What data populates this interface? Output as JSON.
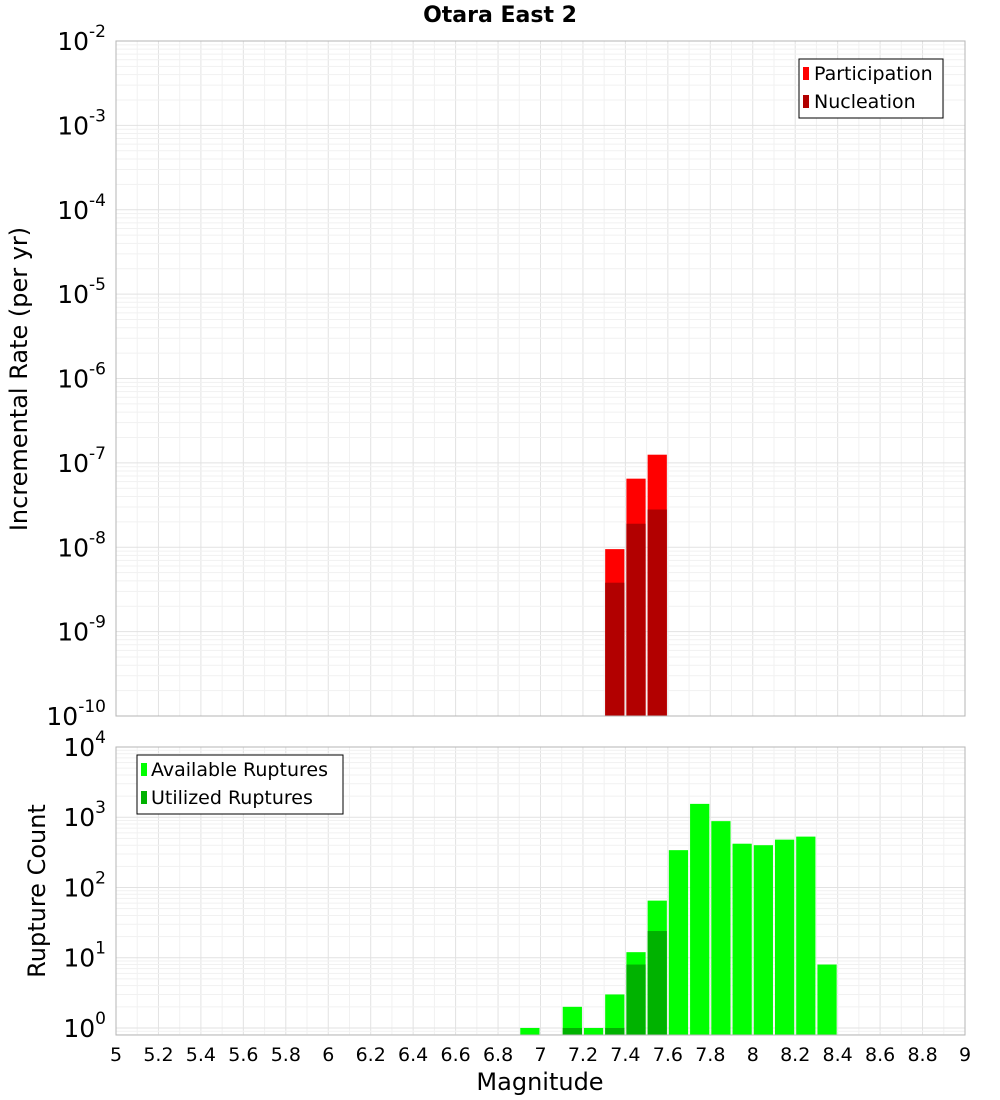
{
  "title": "Otara East 2",
  "colors": {
    "participation": "#ff0000",
    "nucleation": "#b20000",
    "available": "#00ff00",
    "utilized": "#00b200"
  },
  "chart_data": [
    {
      "type": "bar",
      "scale": "log",
      "ylabel": "Incremental Rate (per yr)",
      "ylim_exp": [
        -10,
        -2
      ],
      "y_ticks": [
        {
          "base": "10",
          "exp": "-2"
        },
        {
          "base": "10",
          "exp": "-3"
        },
        {
          "base": "10",
          "exp": "-4"
        },
        {
          "base": "10",
          "exp": "-5"
        },
        {
          "base": "10",
          "exp": "-6"
        },
        {
          "base": "10",
          "exp": "-7"
        },
        {
          "base": "10",
          "exp": "-8"
        },
        {
          "base": "10",
          "exp": "-9"
        },
        {
          "base": "10",
          "exp": "-10"
        }
      ],
      "xlim": [
        5,
        9
      ],
      "bin_width": 0.1,
      "legend": {
        "position": "top-right",
        "entries": [
          "Participation",
          "Nucleation"
        ]
      },
      "series": [
        {
          "name": "Participation",
          "color_key": "participation",
          "points": [
            {
              "x": 7.35,
              "y": 9.5e-09
            },
            {
              "x": 7.45,
              "y": 6.5e-08
            },
            {
              "x": 7.55,
              "y": 1.25e-07
            }
          ]
        },
        {
          "name": "Nucleation",
          "color_key": "nucleation",
          "points": [
            {
              "x": 7.35,
              "y": 3.8e-09
            },
            {
              "x": 7.45,
              "y": 1.9e-08
            },
            {
              "x": 7.55,
              "y": 2.8e-08
            }
          ]
        }
      ]
    },
    {
      "type": "bar",
      "scale": "log",
      "ylabel": "Rupture Count",
      "xlabel": "Magnitude",
      "ylim_exp": [
        -0.1,
        4
      ],
      "y_ticks": [
        {
          "base": "10",
          "exp": "4"
        },
        {
          "base": "10",
          "exp": "3"
        },
        {
          "base": "10",
          "exp": "2"
        },
        {
          "base": "10",
          "exp": "1"
        },
        {
          "base": "10",
          "exp": "0"
        }
      ],
      "xlim": [
        5,
        9
      ],
      "bin_width": 0.1,
      "x_tick_labels": [
        "5",
        "5.2",
        "5.4",
        "5.6",
        "5.8",
        "6",
        "6.2",
        "6.4",
        "6.6",
        "6.8",
        "7",
        "7.2",
        "7.4",
        "7.6",
        "7.8",
        "8",
        "8.2",
        "8.4",
        "8.6",
        "8.8",
        "9"
      ],
      "legend": {
        "position": "top-left",
        "entries": [
          "Available Ruptures",
          "Utilized Ruptures"
        ]
      },
      "series": [
        {
          "name": "Available Ruptures",
          "color_key": "available",
          "points": [
            {
              "x": 6.95,
              "y": 1
            },
            {
              "x": 7.15,
              "y": 2
            },
            {
              "x": 7.25,
              "y": 1
            },
            {
              "x": 7.35,
              "y": 3
            },
            {
              "x": 7.45,
              "y": 12
            },
            {
              "x": 7.55,
              "y": 65
            },
            {
              "x": 7.65,
              "y": 340
            },
            {
              "x": 7.75,
              "y": 1550
            },
            {
              "x": 7.85,
              "y": 880
            },
            {
              "x": 7.95,
              "y": 420
            },
            {
              "x": 8.05,
              "y": 400
            },
            {
              "x": 8.15,
              "y": 480
            },
            {
              "x": 8.25,
              "y": 530
            },
            {
              "x": 8.35,
              "y": 8
            }
          ]
        },
        {
          "name": "Utilized Ruptures",
          "color_key": "utilized",
          "points": [
            {
              "x": 7.15,
              "y": 1
            },
            {
              "x": 7.35,
              "y": 1
            },
            {
              "x": 7.45,
              "y": 8
            },
            {
              "x": 7.55,
              "y": 24
            }
          ]
        }
      ]
    }
  ]
}
